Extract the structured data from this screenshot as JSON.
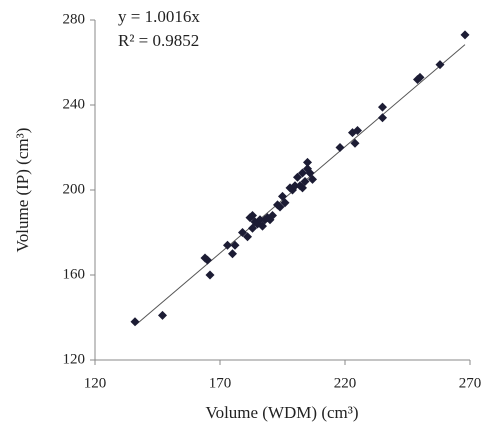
{
  "chart_data": {
    "type": "scatter",
    "x_label": "Volume (WDM) (cm³)",
    "y_label": "Volume (IP) (cm³)",
    "series": [
      {
        "color": "#1c1c34",
        "x": [
          136,
          147,
          164,
          165,
          166,
          173,
          175,
          176,
          179,
          181,
          182,
          183,
          183,
          184,
          185,
          186,
          187,
          188,
          189,
          190,
          191,
          193,
          194,
          195,
          196,
          198,
          199,
          200,
          201,
          202,
          203,
          203,
          204,
          205,
          205,
          206,
          207,
          218,
          223,
          224,
          225,
          235,
          235,
          249,
          250,
          258,
          268
        ],
        "values": [
          138,
          141,
          168,
          167,
          160,
          174,
          170,
          174,
          180,
          178,
          187,
          188,
          182,
          185,
          184,
          186,
          183,
          186,
          187,
          186,
          188,
          193,
          192,
          197,
          194,
          201,
          200,
          202,
          206,
          202,
          208,
          201,
          204,
          210,
          213,
          208,
          205,
          220,
          227,
          222,
          228,
          239,
          234,
          252,
          253,
          259,
          273
        ]
      }
    ],
    "trendline": {
      "equation": "y = 1.0016x",
      "slope": 1.0016,
      "r_squared": "R² = 0.9852",
      "color": "#555555"
    },
    "xlim": [
      120,
      270
    ],
    "xticks": [
      120,
      170,
      220,
      270
    ],
    "ylim": [
      120,
      280
    ],
    "yticks": [
      120,
      160,
      200,
      240,
      280
    ]
  }
}
